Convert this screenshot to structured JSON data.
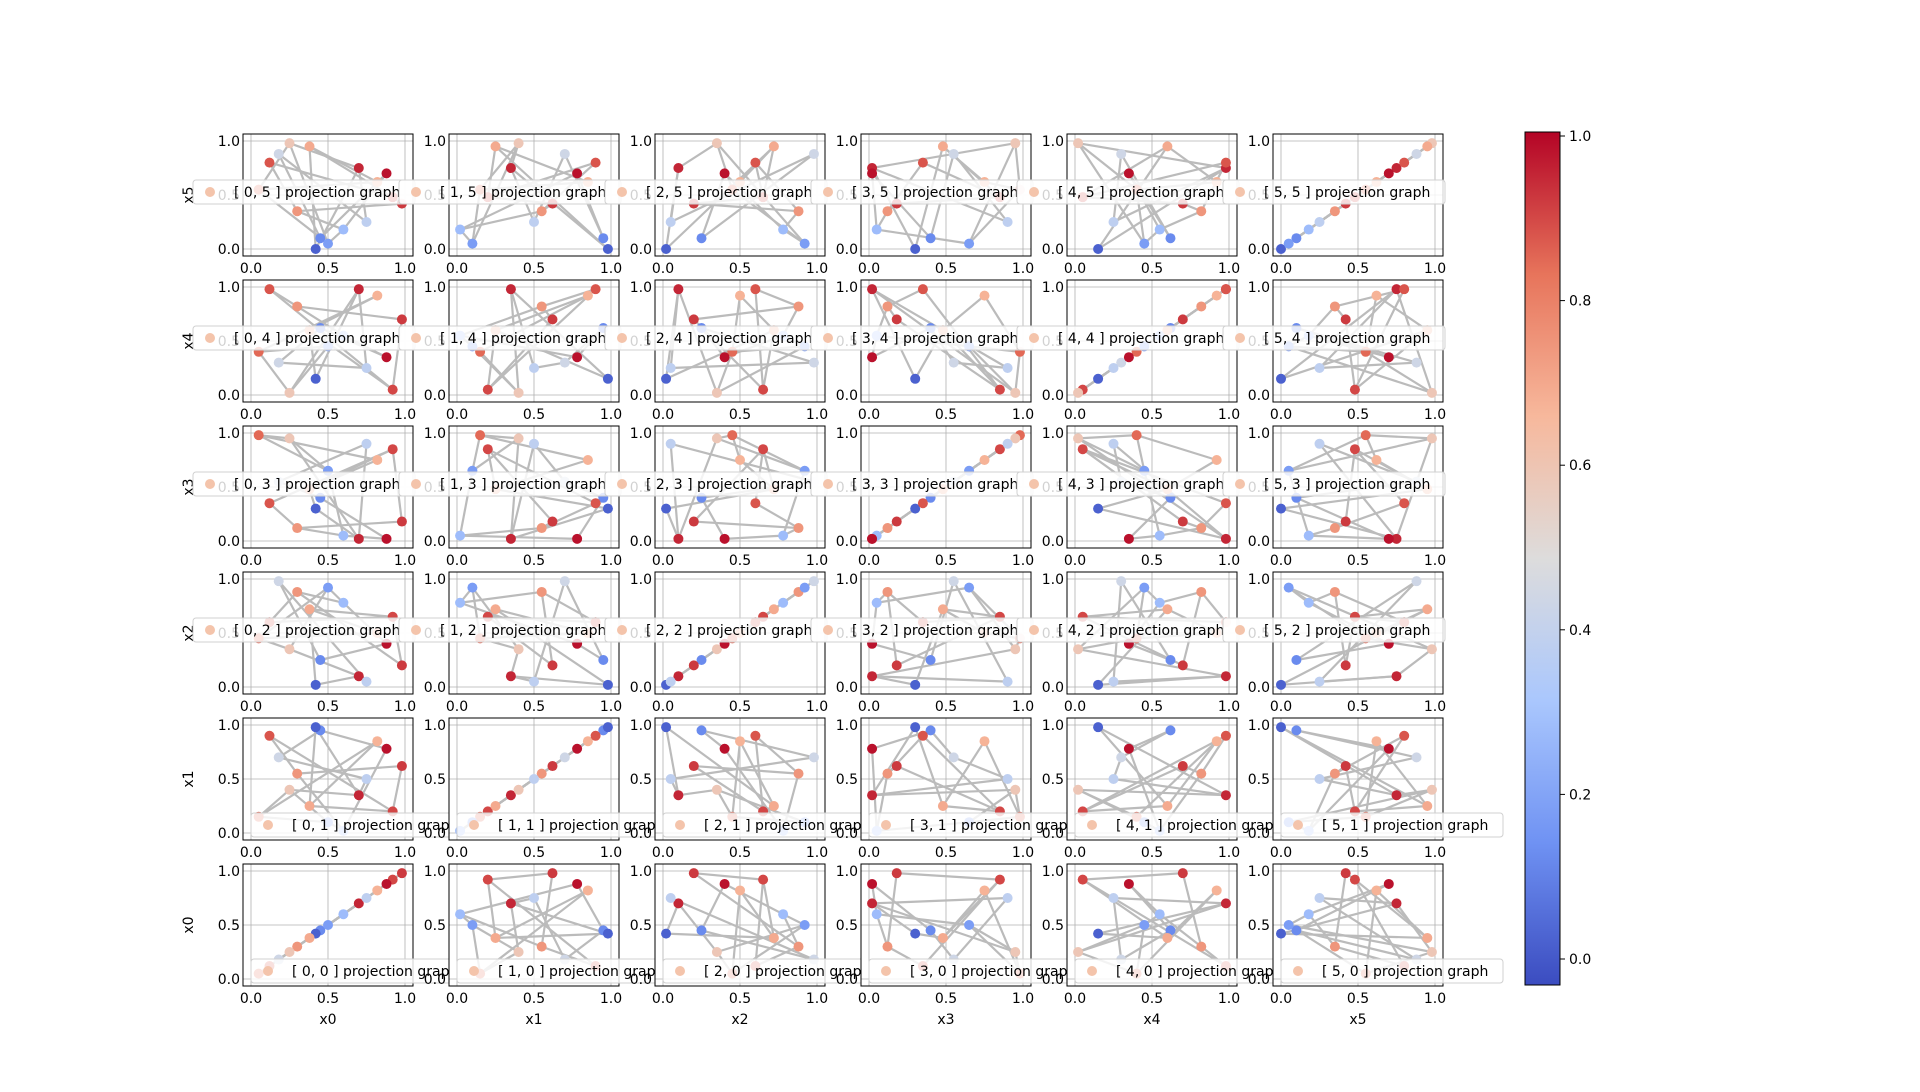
{
  "figure": {
    "colorbar_ticks": [
      "0.0",
      "0.2",
      "0.4",
      "0.6",
      "0.8",
      "1.0"
    ],
    "colorbar_values": [
      0.0,
      0.2,
      0.4,
      0.6,
      0.8,
      1.0
    ],
    "colormap": [
      "#3b4cc0",
      "#6f92f3",
      "#aac7fd",
      "#dddcdc",
      "#f7b89c",
      "#e7745b",
      "#b40426"
    ],
    "edge_color": "#bbbbbb",
    "grid_color": "#b0b0b0",
    "legend_marker_color": "#f4c4ab"
  },
  "chart_data": {
    "type": "scatter",
    "grid_rows": 6,
    "grid_cols": 6,
    "tick_labels": [
      "0.0",
      "0.5",
      "1.0"
    ],
    "xlim": [
      0,
      1
    ],
    "ylim": [
      0,
      1
    ],
    "grid": true,
    "colorbar_range": [
      0.0,
      1.0
    ],
    "x_labels": [
      "x0",
      "x1",
      "x2",
      "x3",
      "x4",
      "x5"
    ],
    "y_labels": [
      "x0",
      "x1",
      "x2",
      "x3",
      "x4",
      "x5"
    ],
    "legend_suffix": "projection graph",
    "points": [
      [
        0.7,
        0.35,
        0.1,
        0.02,
        0.98,
        0.75,
        0.95
      ],
      [
        0.45,
        0.95,
        0.25,
        0.4,
        0.62,
        0.1,
        0.15
      ],
      [
        0.05,
        0.15,
        0.45,
        0.98,
        0.4,
        0.55,
        0.85
      ],
      [
        0.3,
        0.55,
        0.88,
        0.12,
        0.82,
        0.35,
        0.75
      ],
      [
        0.42,
        0.98,
        0.02,
        0.3,
        0.15,
        0.0,
        0.05
      ],
      [
        0.92,
        0.2,
        0.65,
        0.85,
        0.05,
        0.48,
        0.9
      ],
      [
        0.18,
        0.7,
        0.98,
        0.55,
        0.3,
        0.88,
        0.45
      ],
      [
        0.6,
        0.02,
        0.78,
        0.05,
        0.55,
        0.18,
        0.3
      ],
      [
        0.82,
        0.85,
        0.5,
        0.75,
        0.92,
        0.62,
        0.68
      ],
      [
        0.25,
        0.4,
        0.35,
        0.95,
        0.02,
        0.98,
        0.6
      ],
      [
        0.98,
        0.62,
        0.2,
        0.18,
        0.7,
        0.42,
        0.92
      ],
      [
        0.5,
        0.1,
        0.92,
        0.65,
        0.45,
        0.05,
        0.2
      ],
      [
        0.12,
        0.9,
        0.6,
        0.35,
        0.98,
        0.8,
        0.88
      ],
      [
        0.75,
        0.5,
        0.05,
        0.9,
        0.25,
        0.25,
        0.4
      ],
      [
        0.38,
        0.25,
        0.72,
        0.48,
        0.6,
        0.95,
        0.7
      ],
      [
        0.88,
        0.78,
        0.4,
        0.02,
        0.35,
        0.7,
        0.98
      ]
    ],
    "point_columns": [
      "x0",
      "x1",
      "x2",
      "x3",
      "x4",
      "x5",
      "value"
    ],
    "edges": [
      [
        0,
        4
      ],
      [
        1,
        6
      ],
      [
        2,
        9
      ],
      [
        3,
        12
      ],
      [
        4,
        14
      ],
      [
        5,
        10
      ],
      [
        6,
        13
      ],
      [
        7,
        15
      ],
      [
        8,
        2
      ],
      [
        9,
        11
      ],
      [
        10,
        3
      ],
      [
        11,
        7
      ],
      [
        12,
        5
      ],
      [
        13,
        0
      ],
      [
        14,
        8
      ],
      [
        15,
        1
      ],
      [
        0,
        9
      ],
      [
        3,
        7
      ],
      [
        5,
        14
      ],
      [
        2,
        11
      ]
    ]
  }
}
